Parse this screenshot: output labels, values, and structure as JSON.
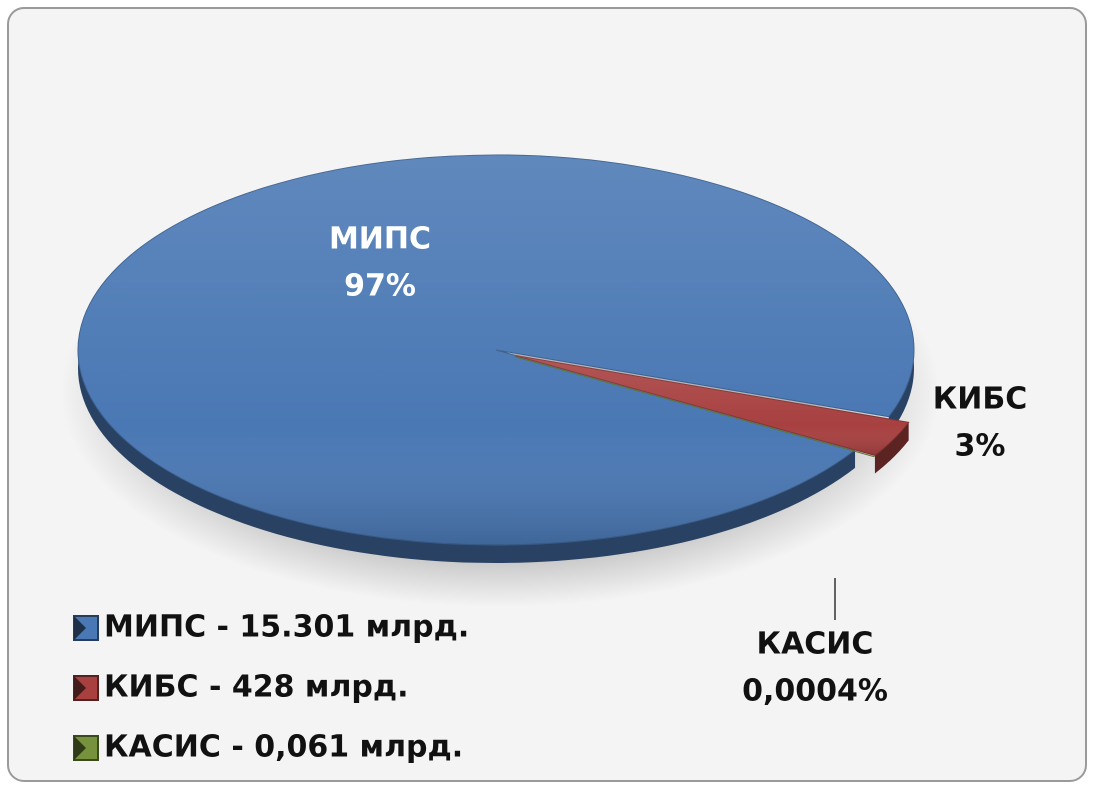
{
  "chart_data": {
    "type": "pie",
    "categories": [
      "МИПС",
      "КИБС",
      "КАСИС"
    ],
    "values": [
      97,
      3,
      0.0004
    ],
    "value_labels": [
      "97%",
      "3%",
      "0,0004%"
    ],
    "colors": [
      "#4a78b4",
      "#a84040",
      "#76923c"
    ],
    "legend": [
      "МИПС - 15.301 млрд.",
      "КИБС - 428 млрд.",
      "КАСИС - 0,061 млрд."
    ]
  }
}
